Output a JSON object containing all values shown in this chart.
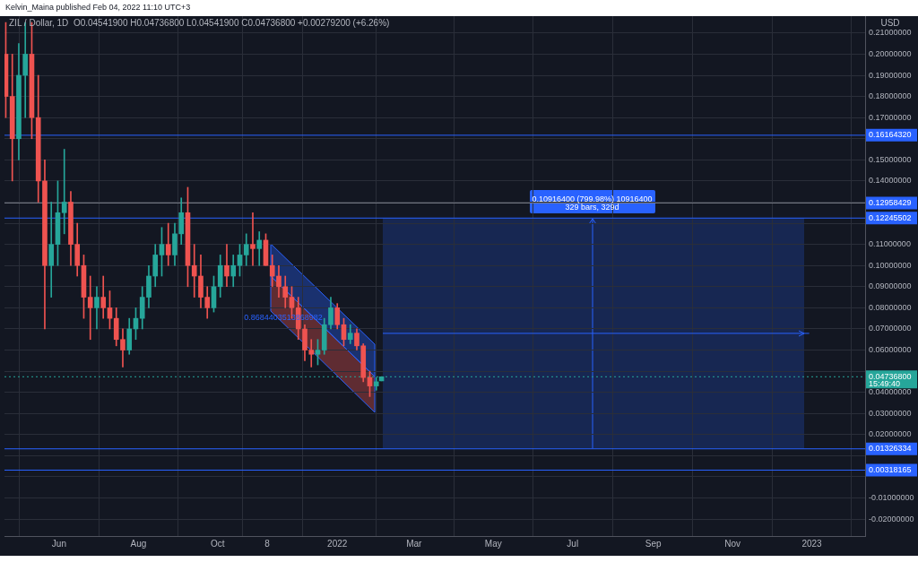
{
  "chart_data": {
    "type": "candlestick",
    "title": "Kelvin_Maina published Feb 04, 2022 11:10 UTC+3",
    "subtitle": "ZIL / Dollar, 1D  O0.04541900 H0.04736800 L0.04541900 C0.04736800 +0.00279200 (+6.26%)",
    "ylabel": "USD",
    "x": [
      "2021-04-21",
      "2021-04-26",
      "2021-05-01",
      "2021-05-06",
      "2021-05-11",
      "2021-05-16",
      "2021-05-21",
      "2021-05-26",
      "2021-05-31",
      "2021-06-05",
      "2021-06-10",
      "2021-06-15",
      "2021-06-20",
      "2021-06-25",
      "2021-06-30",
      "2021-07-05",
      "2021-07-10",
      "2021-07-15",
      "2021-07-20",
      "2021-07-25",
      "2021-07-30",
      "2021-08-04",
      "2021-08-09",
      "2021-08-14",
      "2021-08-19",
      "2021-08-24",
      "2021-08-29",
      "2021-09-03",
      "2021-09-08",
      "2021-09-13",
      "2021-09-18",
      "2021-09-23",
      "2021-09-28",
      "2021-10-03",
      "2021-10-08",
      "2021-10-13",
      "2021-10-18",
      "2021-10-23",
      "2021-10-28",
      "2021-11-02",
      "2021-11-07",
      "2021-11-12",
      "2021-11-17",
      "2021-11-22",
      "2021-11-27",
      "2021-12-02",
      "2021-12-07",
      "2021-12-12",
      "2021-12-17",
      "2021-12-22",
      "2021-12-27",
      "2022-01-01",
      "2022-01-06",
      "2022-01-11",
      "2022-01-16",
      "2022-01-21",
      "2022-01-26",
      "2022-01-31",
      "2022-02-04"
    ],
    "ohlc": [
      [
        0.2,
        0.215,
        0.17,
        0.18
      ],
      [
        0.18,
        0.2,
        0.14,
        0.16
      ],
      [
        0.16,
        0.205,
        0.15,
        0.19
      ],
      [
        0.19,
        0.215,
        0.17,
        0.2
      ],
      [
        0.2,
        0.215,
        0.16,
        0.17
      ],
      [
        0.17,
        0.19,
        0.13,
        0.14
      ],
      [
        0.14,
        0.15,
        0.07,
        0.1
      ],
      [
        0.1,
        0.13,
        0.085,
        0.11
      ],
      [
        0.11,
        0.14,
        0.1,
        0.125
      ],
      [
        0.125,
        0.155,
        0.115,
        0.13
      ],
      [
        0.13,
        0.135,
        0.1,
        0.11
      ],
      [
        0.11,
        0.12,
        0.095,
        0.1
      ],
      [
        0.1,
        0.105,
        0.075,
        0.085
      ],
      [
        0.085,
        0.095,
        0.065,
        0.08
      ],
      [
        0.08,
        0.09,
        0.07,
        0.085
      ],
      [
        0.085,
        0.095,
        0.075,
        0.08
      ],
      [
        0.08,
        0.088,
        0.07,
        0.075
      ],
      [
        0.075,
        0.08,
        0.062,
        0.065
      ],
      [
        0.065,
        0.07,
        0.052,
        0.06
      ],
      [
        0.06,
        0.075,
        0.058,
        0.07
      ],
      [
        0.07,
        0.08,
        0.065,
        0.075
      ],
      [
        0.075,
        0.09,
        0.07,
        0.085
      ],
      [
        0.085,
        0.1,
        0.08,
        0.095
      ],
      [
        0.095,
        0.11,
        0.09,
        0.105
      ],
      [
        0.105,
        0.118,
        0.095,
        0.11
      ],
      [
        0.11,
        0.12,
        0.1,
        0.105
      ],
      [
        0.105,
        0.12,
        0.1,
        0.115
      ],
      [
        0.115,
        0.132,
        0.11,
        0.125
      ],
      [
        0.125,
        0.137,
        0.09,
        0.1
      ],
      [
        0.1,
        0.11,
        0.085,
        0.095
      ],
      [
        0.095,
        0.105,
        0.08,
        0.085
      ],
      [
        0.085,
        0.09,
        0.075,
        0.08
      ],
      [
        0.08,
        0.095,
        0.078,
        0.09
      ],
      [
        0.09,
        0.105,
        0.085,
        0.1
      ],
      [
        0.1,
        0.11,
        0.09,
        0.095
      ],
      [
        0.095,
        0.105,
        0.09,
        0.1
      ],
      [
        0.1,
        0.11,
        0.095,
        0.105
      ],
      [
        0.105,
        0.115,
        0.1,
        0.11
      ],
      [
        0.11,
        0.125,
        0.1,
        0.108
      ],
      [
        0.108,
        0.116,
        0.1,
        0.112
      ],
      [
        0.112,
        0.115,
        0.1,
        0.1
      ],
      [
        0.1,
        0.105,
        0.09,
        0.095
      ],
      [
        0.095,
        0.1,
        0.085,
        0.09
      ],
      [
        0.09,
        0.095,
        0.08,
        0.085
      ],
      [
        0.085,
        0.09,
        0.075,
        0.08
      ],
      [
        0.08,
        0.085,
        0.065,
        0.07
      ],
      [
        0.07,
        0.072,
        0.055,
        0.06
      ],
      [
        0.06,
        0.065,
        0.052,
        0.058
      ],
      [
        0.058,
        0.065,
        0.053,
        0.06
      ],
      [
        0.06,
        0.075,
        0.058,
        0.072
      ],
      [
        0.072,
        0.085,
        0.07,
        0.08
      ],
      [
        0.08,
        0.082,
        0.07,
        0.072
      ],
      [
        0.072,
        0.075,
        0.062,
        0.065
      ],
      [
        0.065,
        0.072,
        0.063,
        0.068
      ],
      [
        0.068,
        0.07,
        0.06,
        0.062
      ],
      [
        0.062,
        0.063,
        0.045,
        0.047
      ],
      [
        0.047,
        0.05,
        0.038,
        0.043
      ],
      [
        0.043,
        0.047,
        0.041,
        0.045
      ],
      [
        0.045419,
        0.047368,
        0.045419,
        0.047368
      ]
    ],
    "colors": [
      "#ef5350",
      "#ef5350",
      "#26a69a",
      "#26a69a",
      "#ef5350",
      "#ef5350",
      "#ef5350",
      "#26a69a",
      "#26a69a",
      "#26a69a",
      "#ef5350",
      "#ef5350",
      "#ef5350",
      "#ef5350",
      "#26a69a",
      "#ef5350",
      "#ef5350",
      "#ef5350",
      "#ef5350",
      "#26a69a",
      "#26a69a",
      "#26a69a",
      "#26a69a",
      "#26a69a",
      "#26a69a",
      "#ef5350",
      "#26a69a",
      "#26a69a",
      "#ef5350",
      "#ef5350",
      "#ef5350",
      "#ef5350",
      "#26a69a",
      "#26a69a",
      "#ef5350",
      "#26a69a",
      "#26a69a",
      "#26a69a",
      "#ef5350",
      "#26a69a",
      "#ef5350",
      "#ef5350",
      "#ef5350",
      "#ef5350",
      "#ef5350",
      "#ef5350",
      "#ef5350",
      "#ef5350",
      "#26a69a",
      "#26a69a",
      "#26a69a",
      "#ef5350",
      "#ef5350",
      "#26a69a",
      "#ef5350",
      "#ef5350",
      "#ef5350",
      "#26a69a",
      "#26a69a"
    ],
    "series": [
      {
        "type": "line",
        "x": [
          "2022-02-05",
          "2022-12-30"
        ],
        "values": [
          0.0679,
          0.0679
        ],
        "color": "#2962ff"
      }
    ],
    "xlim": [
      "2021-04-20",
      "2023-02-11"
    ],
    "xticks": [
      {
        "value": "2021-06-01",
        "label": "Jun"
      },
      {
        "value": "2021-08-01",
        "label": "Aug"
      },
      {
        "value": "2021-10-01",
        "label": "Oct"
      },
      {
        "value": "2021-11-08",
        "label": "8"
      },
      {
        "value": "2022-01-01",
        "label": "2022"
      },
      {
        "value": "2022-03-01",
        "label": "Mar"
      },
      {
        "value": "2022-05-01",
        "label": "May"
      },
      {
        "value": "2022-07-01",
        "label": "Jul"
      },
      {
        "value": "2022-09-01",
        "label": "Sep"
      },
      {
        "value": "2022-11-01",
        "label": "Nov"
      },
      {
        "value": "2023-01-01",
        "label": "2023"
      }
    ],
    "ylim": [
      -0.028,
      0.218
    ],
    "yticks": [
      {
        "value": -0.02,
        "label": "-0.02000000"
      },
      {
        "value": -0.01,
        "label": "-0.01000000"
      },
      {
        "value": 0,
        "label": null
      },
      {
        "value": 0.01,
        "label": null
      },
      {
        "value": 0.02,
        "label": "0.02000000"
      },
      {
        "value": 0.03,
        "label": "0.03000000"
      },
      {
        "value": 0.04,
        "label": "0.04000000"
      },
      {
        "value": 0.05,
        "label": null
      },
      {
        "value": 0.06,
        "label": "0.06000000"
      },
      {
        "value": 0.07,
        "label": "0.07000000"
      },
      {
        "value": 0.08,
        "label": "0.08000000"
      },
      {
        "value": 0.09,
        "label": "0.09000000"
      },
      {
        "value": 0.1,
        "label": "0.10000000"
      },
      {
        "value": 0.11,
        "label": "0.11000000"
      },
      {
        "value": 0.12,
        "label": null
      },
      {
        "value": 0.13,
        "label": null
      },
      {
        "value": 0.14,
        "label": "0.14000000"
      },
      {
        "value": 0.15,
        "label": "0.15000000"
      },
      {
        "value": 0.16,
        "label": null
      },
      {
        "value": 0.17,
        "label": "0.17000000"
      },
      {
        "value": 0.18,
        "label": "0.18000000"
      },
      {
        "value": 0.19,
        "label": "0.19000000"
      },
      {
        "value": 0.2,
        "label": "0.20000000"
      },
      {
        "value": 0.21,
        "label": "0.21000000"
      }
    ],
    "grid": true,
    "ref_lines": [
      {
        "axis": "y",
        "value": 0.1616432,
        "label": "0.16164320",
        "color": "#2962ff"
      },
      {
        "axis": "y",
        "value": 0.12958429,
        "label": "0.12958429",
        "color": "#787b86"
      },
      {
        "axis": "y",
        "value": 0.12245502,
        "label": "0.12245502",
        "color": "#2962ff"
      },
      {
        "axis": "y",
        "value": 0.01326334,
        "label": "0.01326334",
        "color": "#2962ff"
      },
      {
        "axis": "y",
        "value": 0.00318165,
        "label": "0.00318165",
        "color": "#2962ff"
      },
      {
        "axis": "y",
        "value": 0.047368,
        "label": "0.04736800",
        "color": "#26a69a",
        "line_style": "dotted"
      }
    ],
    "annotations": [
      {
        "text": "0.10916400 (799.98%) 10916400",
        "x": "2022-07-16",
        "y": 0.1314
      },
      {
        "text": "329 bars, 329d",
        "x": "2022-07-16",
        "y": 0.1275
      },
      "0.8684403513868982",
      "15:49:40"
    ]
  }
}
